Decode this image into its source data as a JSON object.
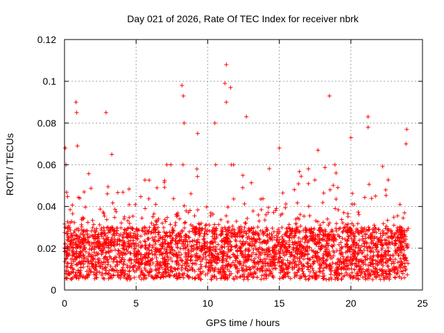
{
  "chart_data": {
    "type": "scatter",
    "title": "Day 021 of 2026, Rate Of TEC Index for receiver nbrk",
    "xlabel": "GPS time / hours",
    "ylabel": "ROTI / TECUs",
    "xlim": [
      0,
      25
    ],
    "ylim": [
      0,
      0.12
    ],
    "xticks": [
      0,
      5,
      10,
      15,
      20,
      25
    ],
    "xtick_labels": [
      "0",
      "5",
      "10",
      "15",
      "20",
      "25"
    ],
    "yticks": [
      0,
      0.02,
      0.04,
      0.06,
      0.08,
      0.1,
      0.12
    ],
    "ytick_labels": [
      "0",
      "0.02",
      "0.04",
      "0.06",
      "0.08",
      "0.1",
      "0.12"
    ],
    "grid": true,
    "marker": "+",
    "color": "#ff0000",
    "series": [
      {
        "name": "ROTI",
        "x_range": [
          0,
          24
        ],
        "baseline_band": [
          0.005,
          0.03
        ],
        "peak_points": [
          {
            "x": 0.05,
            "y": 0.068
          },
          {
            "x": 0.1,
            "y": 0.06
          },
          {
            "x": 0.8,
            "y": 0.09
          },
          {
            "x": 0.85,
            "y": 0.085
          },
          {
            "x": 0.9,
            "y": 0.069
          },
          {
            "x": 2.9,
            "y": 0.085
          },
          {
            "x": 3.3,
            "y": 0.065
          },
          {
            "x": 8.2,
            "y": 0.098
          },
          {
            "x": 8.3,
            "y": 0.093
          },
          {
            "x": 8.35,
            "y": 0.08
          },
          {
            "x": 9.3,
            "y": 0.075
          },
          {
            "x": 10.5,
            "y": 0.08
          },
          {
            "x": 11.3,
            "y": 0.108
          },
          {
            "x": 11.2,
            "y": 0.099
          },
          {
            "x": 11.3,
            "y": 0.09
          },
          {
            "x": 11.6,
            "y": 0.097
          },
          {
            "x": 12.7,
            "y": 0.083
          },
          {
            "x": 15.0,
            "y": 0.068
          },
          {
            "x": 17.7,
            "y": 0.067
          },
          {
            "x": 18.5,
            "y": 0.093
          },
          {
            "x": 20.0,
            "y": 0.073
          },
          {
            "x": 21.2,
            "y": 0.083
          },
          {
            "x": 21.2,
            "y": 0.078
          },
          {
            "x": 23.9,
            "y": 0.077
          },
          {
            "x": 23.85,
            "y": 0.07
          }
        ]
      }
    ]
  }
}
